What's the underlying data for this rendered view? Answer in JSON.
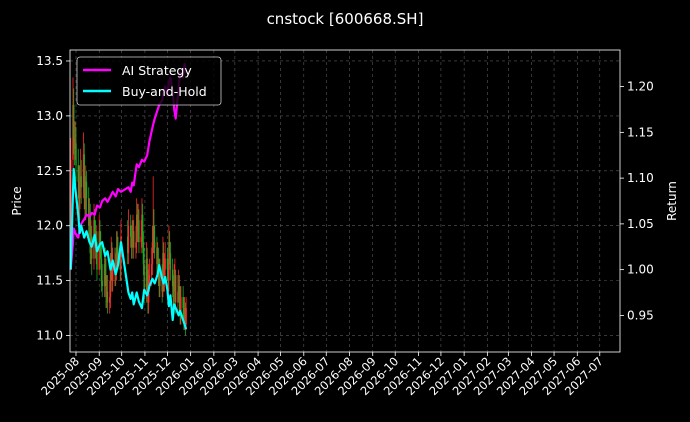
{
  "chart_data": {
    "type": "line",
    "title": "cnstock [600668.SH]",
    "xlabel": "",
    "ylabel": "Price",
    "ylabel_right": "Return",
    "x_ticks": [
      "2025-08",
      "2025-09",
      "2025-10",
      "2025-11",
      "2025-12",
      "2026-01",
      "2026-02",
      "2026-03",
      "2026-04",
      "2026-05",
      "2026-06",
      "2026-07",
      "2026-08",
      "2026-09",
      "2026-10",
      "2026-11",
      "2026-12",
      "2027-01",
      "2027-02",
      "2027-03",
      "2027-04",
      "2027-05",
      "2027-06",
      "2027-07"
    ],
    "xlim": [
      "2025-07-24",
      "2027-07-28"
    ],
    "ylim_left": [
      10.85,
      13.6
    ],
    "ylim_right": [
      0.91,
      1.24
    ],
    "y_ticks_left": [
      11.0,
      11.5,
      12.0,
      12.5,
      13.0,
      13.5
    ],
    "y_ticks_right": [
      0.95,
      1.0,
      1.05,
      1.1,
      1.15,
      1.2
    ],
    "grid": true,
    "legend": "top-left",
    "colors": {
      "ai_strategy": "#ff00ff",
      "buy_and_hold": "#00ffff",
      "candle_up": "#ff2a2a",
      "candle_down": "#22a822",
      "background": "#000000",
      "grid": "#5a5a5a"
    },
    "candles": {
      "dates": [
        "2025-07-25",
        "2025-07-28",
        "2025-07-29",
        "2025-07-30",
        "2025-07-31",
        "2025-08-01",
        "2025-08-04",
        "2025-08-05",
        "2025-08-06",
        "2025-08-07",
        "2025-08-08",
        "2025-08-11",
        "2025-08-12",
        "2025-08-13",
        "2025-08-14",
        "2025-08-15",
        "2025-08-18",
        "2025-08-19",
        "2025-08-20",
        "2025-08-21",
        "2025-08-22",
        "2025-08-25",
        "2025-08-26",
        "2025-08-27",
        "2025-08-28",
        "2025-08-29",
        "2025-09-01",
        "2025-09-02",
        "2025-09-03",
        "2025-09-04",
        "2025-09-05",
        "2025-09-08",
        "2025-09-09",
        "2025-09-10",
        "2025-09-11",
        "2025-09-12",
        "2025-09-15",
        "2025-09-16",
        "2025-09-17",
        "2025-09-18",
        "2025-09-19",
        "2025-09-22",
        "2025-09-23",
        "2025-09-24",
        "2025-09-25",
        "2025-09-26",
        "2025-09-29",
        "2025-09-30",
        "2025-10-09",
        "2025-10-10",
        "2025-10-13",
        "2025-10-14",
        "2025-10-15",
        "2025-10-16",
        "2025-10-17",
        "2025-10-20",
        "2025-10-21",
        "2025-10-22",
        "2025-10-23",
        "2025-10-24",
        "2025-10-27",
        "2025-10-28",
        "2025-10-29",
        "2025-10-30",
        "2025-10-31",
        "2025-11-03",
        "2025-11-04",
        "2025-11-05",
        "2025-11-06",
        "2025-11-07",
        "2025-11-10",
        "2025-11-11",
        "2025-11-12",
        "2025-11-13",
        "2025-11-14",
        "2025-11-17",
        "2025-11-18",
        "2025-11-19",
        "2025-11-20",
        "2025-11-21",
        "2025-11-24",
        "2025-11-25",
        "2025-11-26",
        "2025-11-27",
        "2025-11-28",
        "2025-12-01",
        "2025-12-02",
        "2025-12-03",
        "2025-12-04",
        "2025-12-05",
        "2025-12-08",
        "2025-12-09",
        "2025-12-10",
        "2025-12-11",
        "2025-12-12",
        "2025-12-15",
        "2025-12-16",
        "2025-12-17",
        "2025-12-18",
        "2025-12-19",
        "2025-12-22",
        "2025-12-23",
        "2025-12-24",
        "2025-12-25",
        "2025-12-26"
      ],
      "open": [
        11.7,
        12.6,
        13.1,
        12.8,
        12.7,
        12.75,
        12.55,
        12.4,
        12.15,
        12.4,
        12.45,
        12.35,
        12.65,
        12.3,
        12.15,
        12.4,
        12.25,
        12.0,
        12.1,
        11.75,
        11.9,
        11.7,
        12.05,
        11.95,
        11.8,
        11.85,
        11.6,
        11.95,
        11.85,
        11.7,
        11.5,
        11.45,
        11.65,
        11.55,
        11.35,
        11.4,
        11.3,
        11.35,
        11.6,
        11.75,
        11.5,
        11.65,
        11.55,
        11.6,
        11.8,
        11.75,
        11.7,
        11.6,
        11.9,
        11.75,
        12.0,
        11.9,
        11.8,
        11.9,
        11.95,
        11.8,
        11.85,
        12.1,
        11.95,
        12.05,
        11.85,
        11.9,
        12.1,
        11.85,
        11.65,
        11.4,
        11.7,
        11.5,
        11.3,
        11.5,
        11.55,
        11.65,
        11.85,
        12.0,
        11.85,
        11.8,
        11.65,
        11.7,
        11.55,
        11.45,
        11.55,
        11.4,
        11.75,
        11.5,
        11.6,
        11.7,
        11.6,
        11.5,
        11.85,
        11.75,
        11.6,
        11.45,
        11.3,
        11.5,
        11.55,
        11.3,
        11.4,
        11.45,
        11.3,
        11.2,
        11.35,
        11.25,
        11.15,
        11.2,
        11.1
      ],
      "close": [
        12.6,
        13.1,
        12.8,
        12.7,
        12.75,
        12.55,
        12.4,
        12.15,
        12.4,
        12.45,
        12.35,
        12.65,
        12.3,
        12.15,
        12.4,
        12.25,
        12.0,
        12.1,
        11.75,
        11.9,
        11.7,
        12.05,
        11.95,
        11.8,
        11.85,
        11.6,
        11.95,
        11.85,
        11.7,
        11.5,
        11.45,
        11.65,
        11.55,
        11.35,
        11.4,
        11.3,
        11.35,
        11.6,
        11.75,
        11.5,
        11.65,
        11.55,
        11.6,
        11.8,
        11.75,
        11.7,
        11.6,
        11.9,
        11.75,
        12.0,
        11.9,
        11.8,
        11.9,
        11.95,
        11.8,
        11.85,
        12.1,
        11.95,
        12.05,
        11.85,
        11.9,
        12.1,
        11.85,
        11.65,
        11.4,
        11.7,
        11.5,
        11.3,
        11.5,
        11.55,
        11.65,
        11.85,
        12.0,
        11.85,
        11.8,
        11.65,
        11.7,
        11.55,
        11.45,
        11.55,
        11.4,
        11.75,
        11.5,
        11.6,
        11.7,
        11.6,
        11.5,
        11.85,
        11.75,
        11.6,
        11.45,
        11.3,
        11.5,
        11.55,
        11.3,
        11.4,
        11.45,
        11.3,
        11.2,
        11.35,
        11.25,
        11.15,
        11.2,
        11.1,
        11.25
      ],
      "high": [
        12.8,
        13.35,
        13.25,
        12.95,
        12.95,
        12.9,
        12.7,
        12.55,
        12.55,
        12.7,
        12.6,
        12.85,
        12.75,
        12.45,
        12.55,
        12.5,
        12.35,
        12.25,
        12.2,
        12.05,
        12.0,
        12.2,
        12.15,
        12.05,
        12.0,
        11.95,
        12.1,
        12.05,
        11.95,
        11.85,
        11.65,
        11.8,
        11.8,
        11.7,
        11.55,
        11.55,
        11.5,
        11.75,
        11.9,
        11.85,
        11.8,
        11.8,
        11.75,
        11.95,
        11.95,
        11.9,
        11.85,
        12.05,
        12.05,
        12.15,
        12.1,
        12.0,
        12.05,
        12.1,
        12.05,
        12.0,
        12.25,
        12.2,
        12.2,
        12.15,
        12.05,
        12.25,
        12.2,
        11.95,
        11.8,
        11.85,
        11.8,
        11.6,
        11.65,
        11.7,
        11.8,
        12.0,
        12.45,
        12.15,
        12.0,
        11.9,
        11.85,
        11.8,
        11.7,
        11.7,
        11.65,
        11.9,
        11.85,
        11.75,
        11.85,
        11.8,
        11.7,
        12.0,
        11.95,
        11.85,
        11.7,
        11.55,
        11.65,
        11.7,
        11.6,
        11.55,
        11.6,
        11.55,
        11.45,
        11.45,
        11.45,
        11.35,
        11.35,
        11.3,
        11.35
      ],
      "low": [
        11.6,
        12.45,
        12.65,
        12.55,
        12.6,
        12.4,
        12.25,
        12.0,
        12.05,
        12.25,
        12.2,
        12.25,
        12.15,
        12.05,
        12.05,
        12.1,
        11.9,
        11.9,
        11.65,
        11.65,
        11.55,
        11.6,
        11.85,
        11.7,
        11.65,
        11.5,
        11.55,
        11.75,
        11.6,
        11.4,
        11.35,
        11.35,
        11.45,
        11.25,
        11.25,
        11.2,
        11.2,
        11.25,
        11.5,
        11.4,
        11.4,
        11.45,
        11.45,
        11.5,
        11.65,
        11.6,
        11.5,
        11.5,
        11.65,
        11.65,
        11.8,
        11.7,
        11.7,
        11.8,
        11.7,
        11.7,
        11.75,
        11.85,
        11.85,
        11.75,
        11.75,
        11.8,
        11.75,
        11.55,
        11.3,
        11.3,
        11.4,
        11.2,
        11.2,
        11.4,
        11.45,
        11.55,
        11.75,
        11.75,
        11.7,
        11.55,
        11.55,
        11.45,
        11.35,
        11.35,
        11.3,
        11.35,
        11.4,
        11.4,
        11.5,
        11.5,
        11.4,
        11.4,
        11.65,
        11.5,
        11.35,
        11.2,
        11.2,
        11.4,
        11.2,
        11.2,
        11.3,
        11.2,
        11.1,
        11.1,
        11.15,
        11.05,
        11.05,
        11.0,
        11.05
      ]
    },
    "series": [
      {
        "name": "AI Strategy",
        "axis": "right",
        "x": [
          "2025-07-25",
          "2025-07-28",
          "2025-07-29",
          "2025-07-31",
          "2025-08-04",
          "2025-08-06",
          "2025-08-08",
          "2025-08-12",
          "2025-08-15",
          "2025-08-19",
          "2025-08-22",
          "2025-08-26",
          "2025-08-29",
          "2025-09-02",
          "2025-09-05",
          "2025-09-09",
          "2025-09-12",
          "2025-09-16",
          "2025-09-19",
          "2025-09-23",
          "2025-09-26",
          "2025-09-30",
          "2025-10-10",
          "2025-10-13",
          "2025-10-15",
          "2025-10-17",
          "2025-10-21",
          "2025-10-24",
          "2025-10-28",
          "2025-10-31",
          "2025-11-04",
          "2025-11-07",
          "2025-11-11",
          "2025-11-14",
          "2025-11-18",
          "2025-11-20",
          "2025-11-24",
          "2025-11-26",
          "2025-11-28",
          "2025-12-01",
          "2025-12-03",
          "2025-12-05",
          "2025-12-08",
          "2025-12-10",
          "2025-12-12",
          "2025-12-16",
          "2025-12-18",
          "2025-12-22",
          "2025-12-24",
          "2025-12-26"
        ],
        "values": [
          1.0,
          1.03,
          1.045,
          1.04,
          1.035,
          1.045,
          1.05,
          1.055,
          1.06,
          1.058,
          1.062,
          1.06,
          1.07,
          1.068,
          1.075,
          1.078,
          1.074,
          1.08,
          1.085,
          1.08,
          1.088,
          1.085,
          1.09,
          1.085,
          1.095,
          1.092,
          1.115,
          1.112,
          1.12,
          1.118,
          1.125,
          1.14,
          1.155,
          1.165,
          1.175,
          1.18,
          1.185,
          1.195,
          1.2,
          1.19,
          1.205,
          1.21,
          1.195,
          1.175,
          1.165,
          1.2,
          1.215,
          1.21,
          1.225,
          1.215
        ]
      },
      {
        "name": "Buy-and-Hold",
        "axis": "right",
        "x": [
          "2025-07-25",
          "2025-07-28",
          "2025-07-29",
          "2025-07-31",
          "2025-08-04",
          "2025-08-06",
          "2025-08-08",
          "2025-08-12",
          "2025-08-15",
          "2025-08-19",
          "2025-08-22",
          "2025-08-26",
          "2025-08-29",
          "2025-09-02",
          "2025-09-05",
          "2025-09-09",
          "2025-09-12",
          "2025-09-16",
          "2025-09-19",
          "2025-09-23",
          "2025-09-26",
          "2025-09-30",
          "2025-10-10",
          "2025-10-13",
          "2025-10-15",
          "2025-10-17",
          "2025-10-21",
          "2025-10-24",
          "2025-10-28",
          "2025-10-31",
          "2025-11-04",
          "2025-11-07",
          "2025-11-11",
          "2025-11-14",
          "2025-11-18",
          "2025-11-20",
          "2025-11-24",
          "2025-11-26",
          "2025-11-28",
          "2025-12-01",
          "2025-12-03",
          "2025-12-05",
          "2025-12-08",
          "2025-12-10",
          "2025-12-12",
          "2025-12-16",
          "2025-12-18",
          "2025-12-22",
          "2025-12-24",
          "2025-12-26"
        ],
        "values": [
          1.0,
          1.085,
          1.11,
          1.09,
          1.06,
          1.04,
          1.048,
          1.035,
          1.042,
          1.03,
          1.025,
          1.038,
          1.02,
          1.028,
          1.03,
          1.015,
          1.02,
          1.0,
          1.01,
          0.995,
          1.005,
          1.03,
          0.975,
          0.968,
          0.975,
          0.962,
          0.975,
          0.965,
          0.958,
          0.978,
          0.972,
          0.982,
          0.99,
          0.985,
          0.995,
          1.005,
          0.99,
          0.985,
          0.992,
          0.978,
          0.96,
          0.972,
          0.945,
          0.962,
          0.958,
          0.95,
          0.955,
          0.945,
          0.94,
          0.935
        ]
      }
    ]
  }
}
